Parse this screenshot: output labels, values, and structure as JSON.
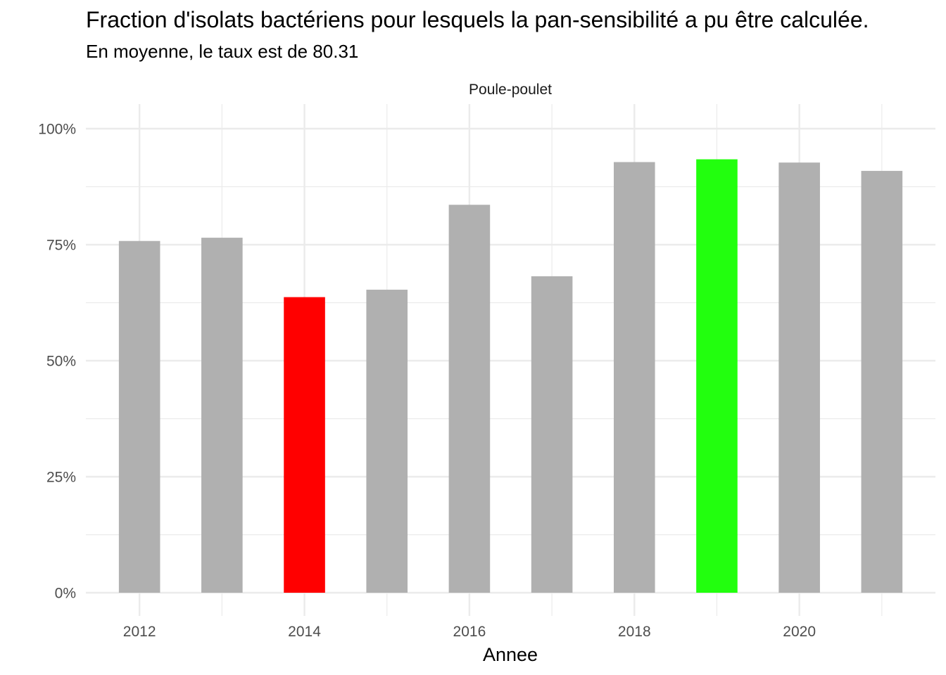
{
  "title": "Fraction d'isolats bactériens pour lesquels la pan-sensibilité a pu être calculée.",
  "subtitle": "En moyenne, le taux est de 80.31",
  "colors": {
    "default": "#b0b0b0",
    "min": "#ff0000",
    "max": "#22ff0e",
    "grid": "#ebebeb"
  },
  "chart_data": {
    "type": "bar",
    "facet": "Poule-poulet",
    "xlabel": "Annee",
    "ylabel": "",
    "x": [
      2012,
      2013,
      2014,
      2015,
      2016,
      2017,
      2018,
      2019,
      2020,
      2021
    ],
    "values": [
      75.8,
      76.5,
      63.7,
      65.3,
      83.6,
      68.2,
      92.8,
      93.4,
      92.7,
      90.9
    ],
    "bar_colors": [
      "default",
      "default",
      "min",
      "default",
      "default",
      "default",
      "default",
      "max",
      "default",
      "default"
    ],
    "ylim": [
      0,
      100
    ],
    "xlim": [
      2011.35,
      2021.65
    ],
    "y_ticks": [
      0,
      25,
      50,
      75,
      100
    ],
    "y_tick_labels": [
      "0%",
      "25%",
      "50%",
      "75%",
      "100%"
    ],
    "x_ticks": [
      2012,
      2014,
      2016,
      2018,
      2020
    ],
    "x_tick_labels": [
      "2012",
      "2014",
      "2016",
      "2018",
      "2020"
    ],
    "grid": true,
    "legend": "none"
  }
}
